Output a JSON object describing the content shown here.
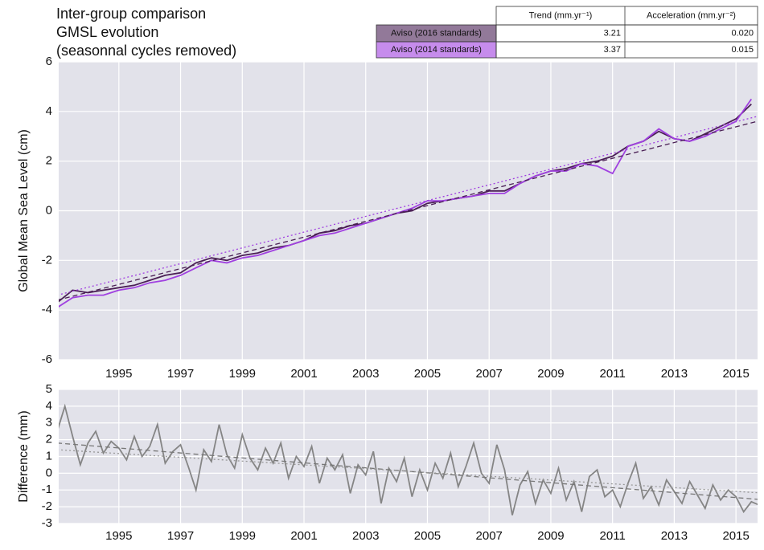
{
  "chart_data": [
    {
      "type": "line",
      "title": [
        "Inter-group comparison",
        "GMSL evolution",
        "(seasonnal cycles removed)"
      ],
      "ylabel": "Global Mean Sea Level (cm)",
      "x": [
        1993.0,
        1993.5,
        1994.0,
        1994.5,
        1995.0,
        1995.5,
        1996.0,
        1996.5,
        1997.0,
        1997.5,
        1998.0,
        1998.5,
        1999.0,
        1999.5,
        2000.0,
        2000.5,
        2001.0,
        2001.5,
        2002.0,
        2002.5,
        2003.0,
        2003.5,
        2004.0,
        2004.5,
        2005.0,
        2005.5,
        2006.0,
        2006.5,
        2007.0,
        2007.5,
        2008.0,
        2008.5,
        2009.0,
        2009.5,
        2010.0,
        2010.5,
        2011.0,
        2011.5,
        2012.0,
        2012.5,
        2013.0,
        2013.5,
        2014.0,
        2014.5,
        2015.0,
        2015.5
      ],
      "series": [
        {
          "name": "Aviso (2016 standards)",
          "color": "#4a1f55",
          "values": [
            -3.7,
            -3.2,
            -3.3,
            -3.2,
            -3.1,
            -3.0,
            -2.8,
            -2.6,
            -2.5,
            -2.1,
            -1.9,
            -2.0,
            -1.8,
            -1.7,
            -1.5,
            -1.4,
            -1.2,
            -0.9,
            -0.8,
            -0.6,
            -0.5,
            -0.3,
            -0.1,
            0.0,
            0.3,
            0.4,
            0.5,
            0.6,
            0.8,
            0.8,
            1.1,
            1.4,
            1.6,
            1.7,
            1.9,
            2.0,
            2.2,
            2.6,
            2.8,
            3.2,
            2.9,
            2.8,
            3.1,
            3.4,
            3.7,
            4.3
          ]
        },
        {
          "name": "Aviso (2014 standards)",
          "color": "#a040e0",
          "values": [
            -3.9,
            -3.5,
            -3.4,
            -3.4,
            -3.2,
            -3.1,
            -2.9,
            -2.8,
            -2.6,
            -2.3,
            -2.0,
            -2.1,
            -1.9,
            -1.8,
            -1.6,
            -1.4,
            -1.2,
            -1.0,
            -0.9,
            -0.7,
            -0.5,
            -0.3,
            -0.1,
            0.1,
            0.4,
            0.4,
            0.5,
            0.6,
            0.7,
            0.7,
            1.1,
            1.4,
            1.6,
            1.6,
            1.9,
            1.8,
            1.5,
            2.6,
            2.8,
            3.3,
            2.9,
            2.8,
            3.0,
            3.3,
            3.6,
            4.5
          ]
        },
        {
          "color": "#4a1f55",
          "dash": "6,4",
          "x": [
            1993.0,
            2016.0
          ],
          "values": [
            -3.6,
            3.7
          ]
        },
        {
          "color": "#a040e0",
          "dash": "2,3",
          "x": [
            1993.0,
            2016.0
          ],
          "values": [
            -3.4,
            3.9
          ]
        }
      ],
      "xlim": [
        1993.05,
        2015.7
      ],
      "xticks": [
        1995,
        1997,
        1999,
        2001,
        2003,
        2005,
        2007,
        2009,
        2011,
        2013,
        2015
      ],
      "ylim": [
        -6,
        6
      ],
      "yticks": [
        -6,
        -4,
        -2,
        0,
        2,
        4,
        6
      ],
      "grid": true,
      "legend_table": {
        "columns": [
          "Trend (mm.yr⁻¹)",
          "Acceleration (mm.yr⁻²)"
        ],
        "rows": [
          [
            "3.21",
            "0.020"
          ],
          [
            "3.37",
            "0.015"
          ]
        ]
      }
    },
    {
      "type": "line",
      "ylabel": "Difference (mm)",
      "x": [
        1993.0,
        1993.25,
        1993.5,
        1993.75,
        1994.0,
        1994.25,
        1994.5,
        1994.75,
        1995.0,
        1995.25,
        1995.5,
        1995.75,
        1996.0,
        1996.25,
        1996.5,
        1996.75,
        1997.0,
        1997.25,
        1997.5,
        1997.75,
        1998.0,
        1998.25,
        1998.5,
        1998.75,
        1999.0,
        1999.25,
        1999.5,
        1999.75,
        2000.0,
        2000.25,
        2000.5,
        2000.75,
        2001.0,
        2001.25,
        2001.5,
        2001.75,
        2002.0,
        2002.25,
        2002.5,
        2002.75,
        2003.0,
        2003.25,
        2003.5,
        2003.75,
        2004.0,
        2004.25,
        2004.5,
        2004.75,
        2005.0,
        2005.25,
        2005.5,
        2005.75,
        2006.0,
        2006.25,
        2006.5,
        2006.75,
        2007.0,
        2007.25,
        2007.5,
        2007.75,
        2008.0,
        2008.25,
        2008.5,
        2008.75,
        2009.0,
        2009.25,
        2009.5,
        2009.75,
        2010.0,
        2010.25,
        2010.5,
        2010.75,
        2011.0,
        2011.25,
        2011.5,
        2011.75,
        2012.0,
        2012.25,
        2012.5,
        2012.75,
        2013.0,
        2013.25,
        2013.5,
        2013.75,
        2014.0,
        2014.25,
        2014.5,
        2014.75,
        2015.0,
        2015.25,
        2015.5,
        2015.75
      ],
      "series": [
        {
          "color": "#858585",
          "values": [
            2.5,
            4.0,
            2.2,
            0.5,
            1.8,
            2.5,
            1.2,
            1.9,
            1.5,
            0.8,
            2.2,
            1.0,
            1.6,
            2.9,
            0.6,
            1.3,
            1.7,
            0.4,
            -1.0,
            1.4,
            0.7,
            2.9,
            1.1,
            0.3,
            2.3,
            0.9,
            0.2,
            1.5,
            0.6,
            1.8,
            -0.3,
            1.0,
            0.4,
            1.6,
            -0.6,
            0.9,
            0.2,
            1.1,
            -1.2,
            0.5,
            -0.1,
            1.3,
            -1.8,
            0.3,
            -0.5,
            0.9,
            -1.4,
            0.2,
            -1.0,
            0.6,
            -0.3,
            1.2,
            -0.8,
            0.4,
            1.8,
            0.0,
            -0.6,
            1.7,
            0.2,
            -2.5,
            -0.7,
            0.1,
            -1.8,
            -0.4,
            -1.2,
            0.3,
            -1.6,
            -0.5,
            -2.3,
            -0.2,
            0.2,
            -1.4,
            -1.0,
            -2.0,
            -0.6,
            0.6,
            -1.5,
            -0.8,
            -1.9,
            -0.4,
            -1.1,
            -1.8,
            -0.5,
            -1.3,
            -2.1,
            -0.7,
            -1.6,
            -1.0,
            -1.4,
            -2.3,
            -1.7,
            -1.9
          ]
        },
        {
          "color": "#777777",
          "dash": "6,4",
          "x": [
            1993.0,
            2016.0
          ],
          "values": [
            1.8,
            -1.6
          ]
        },
        {
          "color": "#999999",
          "dash": "2,3",
          "x": [
            1993.0,
            2016.0
          ],
          "values": [
            1.4,
            -1.2
          ]
        }
      ],
      "xlim": [
        1993.05,
        2015.7
      ],
      "xticks": [
        1995,
        1997,
        1999,
        2001,
        2003,
        2005,
        2007,
        2009,
        2011,
        2013,
        2015
      ],
      "ylim": [
        -3,
        5
      ],
      "yticks": [
        -3,
        -2,
        -1,
        0,
        1,
        2,
        3,
        4,
        5
      ],
      "grid": true
    }
  ]
}
